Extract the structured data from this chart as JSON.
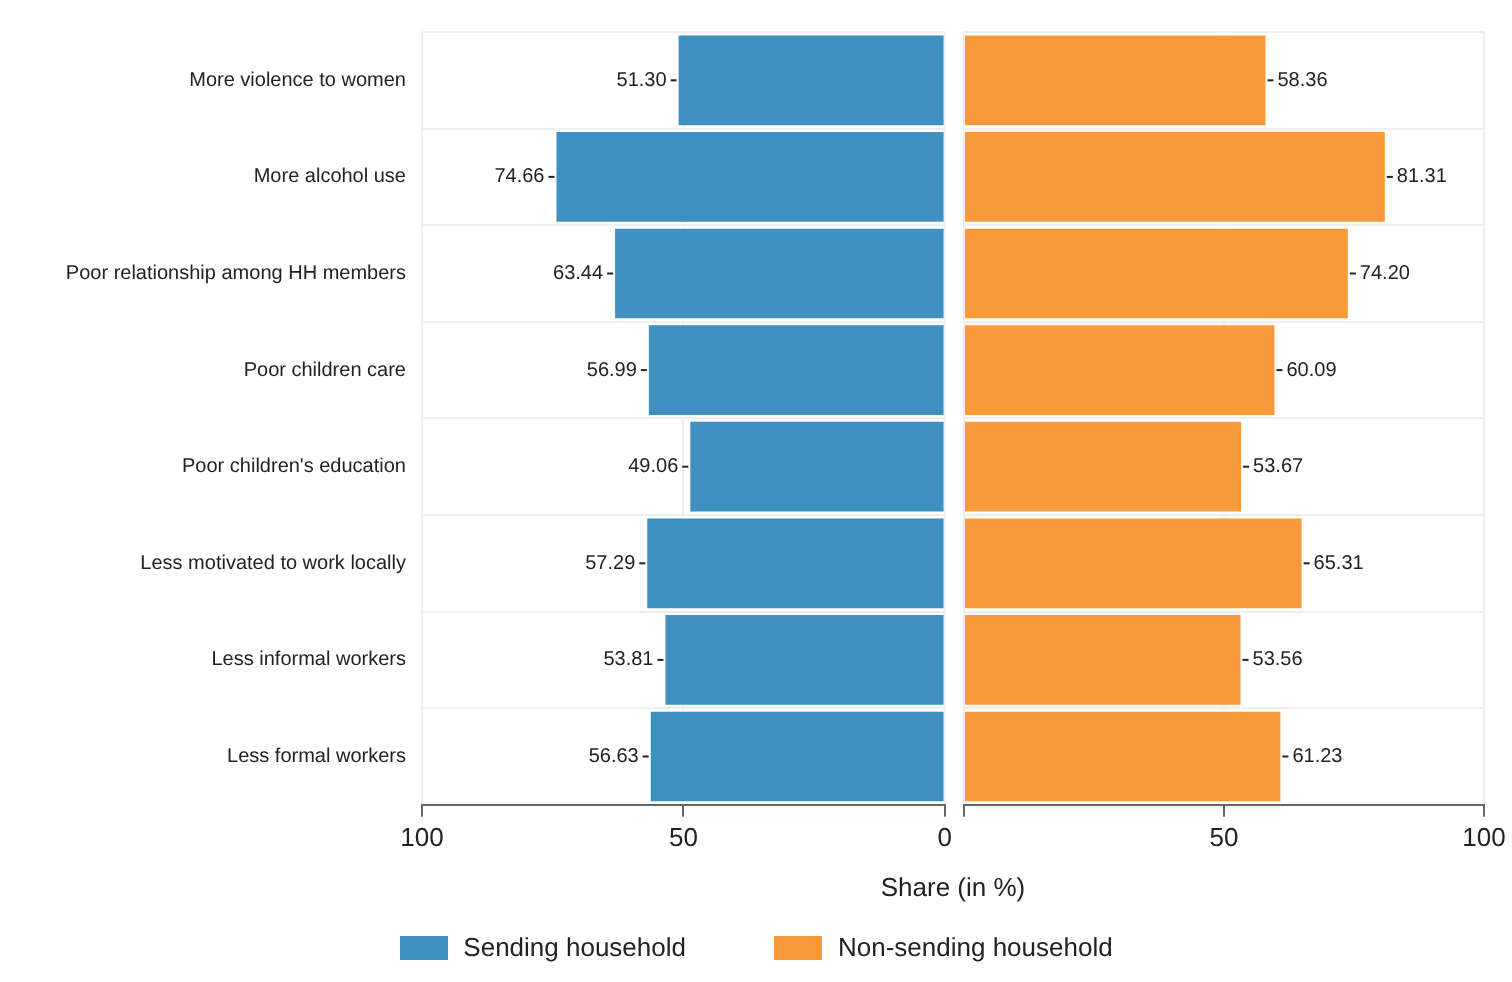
{
  "chart_data": [
    {
      "type": "bar",
      "orientation": "horizontal",
      "xlabel": "Share (in %)",
      "categories": [
        "More violence to women",
        "More alcohol use",
        "Poor relationship among HH members",
        "Poor children care",
        "Poor children's education",
        "Less motivated to work locally",
        "Less informal workers",
        "Less formal workers"
      ],
      "series": [
        {
          "name": "Sending household",
          "color": "#3f8fc0",
          "values": [
            51.3,
            74.66,
            63.44,
            56.99,
            49.06,
            57.29,
            53.81,
            56.63
          ],
          "value_labels": [
            "51.30",
            "74.66",
            "63.44",
            "56.99",
            "49.06",
            "57.29",
            "53.81",
            "56.63"
          ]
        }
      ],
      "xlim": [
        100,
        0
      ],
      "xticks": [
        100,
        50,
        0
      ],
      "grid": true,
      "legend": "bottom"
    },
    {
      "type": "bar",
      "orientation": "horizontal",
      "categories": [
        null,
        null,
        null,
        null,
        null,
        null,
        null,
        null
      ],
      "series": [
        {
          "name": "Non-sending household",
          "color": "#f89a3c",
          "values": [
            58.36,
            81.31,
            74.2,
            60.09,
            53.67,
            65.31,
            53.56,
            61.23
          ],
          "value_labels": [
            "58.36",
            "81.31",
            "74.20",
            "60.09",
            "53.67",
            "65.31",
            "53.56",
            "61.23"
          ]
        }
      ],
      "xlim": [
        0,
        100
      ],
      "xticks": [
        {
          "value": 0,
          "label": null
        },
        50,
        100
      ],
      "grid": true,
      "legend": "bottom",
      "tick_labels": "x"
    }
  ]
}
